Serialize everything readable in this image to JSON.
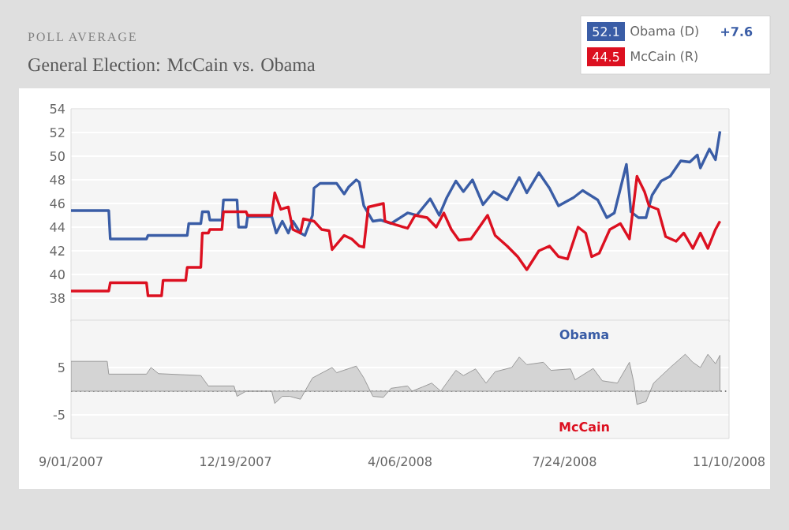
{
  "chart_data": [
    {
      "type": "line",
      "subtitle": "POLL AVERAGE",
      "title": "General Election: McCain vs. Obama",
      "legend": "top right",
      "grid": "y",
      "tick_labels": "y",
      "xlim": [
        "2007-09-01",
        "2008-11-10"
      ],
      "ylim": [
        36,
        54
      ],
      "yticks": [
        38,
        40,
        42,
        44,
        46,
        48,
        50,
        52,
        54
      ],
      "annotations": [
        "52.1",
        "+7.6",
        "44.5"
      ],
      "series": [
        {
          "name": "Obama (D)",
          "color": "#3a5da6",
          "x": [
            "2007-09-01",
            "2007-09-26",
            "2007-09-27",
            "2007-10-21",
            "2007-10-22",
            "2007-11-17",
            "2007-11-18",
            "2007-11-26",
            "2007-11-27",
            "2007-12-01",
            "2007-12-02",
            "2007-12-10",
            "2007-12-11",
            "2007-12-20",
            "2007-12-21",
            "2007-12-26",
            "2007-12-27",
            "2008-01-12",
            "2008-01-15",
            "2008-01-19",
            "2008-01-23",
            "2008-01-26",
            "2008-01-31",
            "2008-02-03",
            "2008-02-08",
            "2008-02-09",
            "2008-02-13",
            "2008-02-24",
            "2008-02-29",
            "2008-03-03",
            "2008-03-08",
            "2008-03-10",
            "2008-03-13",
            "2008-03-19",
            "2008-03-24",
            "2008-03-31",
            "2008-04-11",
            "2008-04-17",
            "2008-04-26",
            "2008-05-02",
            "2008-05-07",
            "2008-05-13",
            "2008-05-18",
            "2008-05-24",
            "2008-05-31",
            "2008-06-07",
            "2008-06-16",
            "2008-06-24",
            "2008-06-29",
            "2008-07-07",
            "2008-07-14",
            "2008-07-20",
            "2008-07-30",
            "2008-08-05",
            "2008-08-15",
            "2008-08-21",
            "2008-08-26",
            "2008-09-03",
            "2008-09-06",
            "2008-09-11",
            "2008-09-16",
            "2008-09-20",
            "2008-09-26",
            "2008-10-02",
            "2008-10-09",
            "2008-10-15",
            "2008-10-20",
            "2008-10-22",
            "2008-10-28",
            "2008-11-01",
            "2008-11-04"
          ],
          "values": [
            45.4,
            45.4,
            43.0,
            43.0,
            43.3,
            43.3,
            44.3,
            44.3,
            45.3,
            45.3,
            44.6,
            44.6,
            46.3,
            46.3,
            44.0,
            44.0,
            44.9,
            44.9,
            43.5,
            44.5,
            43.5,
            44.5,
            43.5,
            43.3,
            45.0,
            47.3,
            47.7,
            47.7,
            46.8,
            47.4,
            48.0,
            47.8,
            45.8,
            44.5,
            44.6,
            44.3,
            45.2,
            45.0,
            46.4,
            45.0,
            46.5,
            47.9,
            47.0,
            48.0,
            45.9,
            47.0,
            46.3,
            48.2,
            46.9,
            48.6,
            47.3,
            45.8,
            46.5,
            47.1,
            46.3,
            44.8,
            45.2,
            49.3,
            45.3,
            44.8,
            44.8,
            46.7,
            47.9,
            48.3,
            49.6,
            49.5,
            50.1,
            49.0,
            50.6,
            49.7,
            52.1
          ]
        },
        {
          "name": "McCain (R)",
          "color": "#dc1020",
          "x": [
            "2007-09-01",
            "2007-09-26",
            "2007-09-27",
            "2007-10-21",
            "2007-10-22",
            "2007-10-31",
            "2007-11-01",
            "2007-11-16",
            "2007-11-17",
            "2007-11-26",
            "2007-11-27",
            "2007-12-01",
            "2007-12-02",
            "2007-12-10",
            "2007-12-11",
            "2007-12-26",
            "2007-12-27",
            "2008-01-12",
            "2008-01-14",
            "2008-01-18",
            "2008-01-23",
            "2008-01-26",
            "2008-01-31",
            "2008-02-02",
            "2008-02-09",
            "2008-02-14",
            "2008-02-19",
            "2008-02-21",
            "2008-02-29",
            "2008-03-05",
            "2008-03-10",
            "2008-03-13",
            "2008-03-16",
            "2008-03-26",
            "2008-03-27",
            "2008-04-03",
            "2008-04-11",
            "2008-04-16",
            "2008-04-24",
            "2008-04-30",
            "2008-05-05",
            "2008-05-10",
            "2008-05-15",
            "2008-05-23",
            "2008-05-28",
            "2008-06-03",
            "2008-06-08",
            "2008-06-16",
            "2008-06-23",
            "2008-06-29",
            "2008-07-07",
            "2008-07-14",
            "2008-07-20",
            "2008-07-26",
            "2008-08-02",
            "2008-08-07",
            "2008-08-11",
            "2008-08-16",
            "2008-08-23",
            "2008-08-30",
            "2008-09-05",
            "2008-09-10",
            "2008-09-15",
            "2008-09-18",
            "2008-09-24",
            "2008-09-29",
            "2008-10-06",
            "2008-10-11",
            "2008-10-17",
            "2008-10-22",
            "2008-10-27",
            "2008-11-01",
            "2008-11-04"
          ],
          "values": [
            38.6,
            38.6,
            39.3,
            39.3,
            38.2,
            38.2,
            39.5,
            39.5,
            40.6,
            40.6,
            43.5,
            43.5,
            43.8,
            43.8,
            45.3,
            45.3,
            45.0,
            45.0,
            46.9,
            45.5,
            45.7,
            43.8,
            43.5,
            44.7,
            44.5,
            43.8,
            43.7,
            42.1,
            43.3,
            43.0,
            42.4,
            42.3,
            45.7,
            46.0,
            44.5,
            44.2,
            43.9,
            45.0,
            44.8,
            44.0,
            45.2,
            43.8,
            42.9,
            43.0,
            43.9,
            45.0,
            43.3,
            42.4,
            41.5,
            40.4,
            42.0,
            42.4,
            41.5,
            41.3,
            44.0,
            43.5,
            41.5,
            41.8,
            43.8,
            44.3,
            43.0,
            48.3,
            47.0,
            45.8,
            45.5,
            43.2,
            42.8,
            43.5,
            42.2,
            43.5,
            42.2,
            43.8,
            44.5
          ]
        }
      ]
    },
    {
      "type": "area",
      "color": "#d4d4d4",
      "grid": "y",
      "xlim": [
        "2007-09-01",
        "2008-11-10"
      ],
      "ylim": [
        -10,
        15
      ],
      "yticks": [
        5,
        -5
      ],
      "xticks": [
        {
          "value": "2007-09-01",
          "label": "9/01/2007"
        },
        {
          "value": "2007-12-19",
          "label": "12/19/2007"
        },
        {
          "value": "2008-04-06",
          "label": "4/06/2008"
        },
        {
          "value": "2008-07-24",
          "label": "7/24/2008"
        },
        {
          "value": "2008-11-10",
          "label": "11/10/2008"
        }
      ],
      "ref_lines": [
        {
          "axis": "y",
          "value": 0,
          "line_style": "dotted",
          "color": "#555555"
        }
      ],
      "annotations": [
        "Obama",
        "McCain"
      ],
      "x": [
        "2007-09-01",
        "2007-09-25",
        "2007-09-26",
        "2007-10-21",
        "2007-10-24",
        "2007-10-29",
        "2007-11-26",
        "2007-12-01",
        "2007-12-18",
        "2007-12-20",
        "2007-12-26",
        "2008-01-12",
        "2008-01-14",
        "2008-01-19",
        "2008-01-24",
        "2008-01-31",
        "2008-02-08",
        "2008-02-21",
        "2008-02-24",
        "2008-03-08",
        "2008-03-13",
        "2008-03-19",
        "2008-03-26",
        "2008-03-31",
        "2008-04-11",
        "2008-04-14",
        "2008-04-21",
        "2008-04-27",
        "2008-05-03",
        "2008-05-13",
        "2008-05-18",
        "2008-05-26",
        "2008-06-02",
        "2008-06-08",
        "2008-06-19",
        "2008-06-24",
        "2008-06-29",
        "2008-07-10",
        "2008-07-15",
        "2008-07-28",
        "2008-07-31",
        "2008-08-12",
        "2008-08-18",
        "2008-08-28",
        "2008-09-05",
        "2008-09-08",
        "2008-09-10",
        "2008-09-16",
        "2008-09-21",
        "2008-10-02",
        "2008-10-12",
        "2008-10-17",
        "2008-10-22",
        "2008-10-27",
        "2008-11-01",
        "2008-11-04"
      ],
      "values": [
        6.3,
        6.3,
        3.6,
        3.6,
        5.0,
        3.7,
        3.3,
        1.1,
        1.1,
        -1.1,
        0,
        0,
        -2.6,
        -1.1,
        -1.1,
        -1.7,
        2.8,
        5.0,
        3.9,
        5.3,
        2.8,
        -1.1,
        -1.3,
        0.6,
        1.1,
        0,
        0.9,
        1.7,
        0,
        4.4,
        3.3,
        4.7,
        1.7,
        4.1,
        5.0,
        7.2,
        5.6,
        6.1,
        4.4,
        4.7,
        2.4,
        4.8,
        2.2,
        1.7,
        6.1,
        1.7,
        -2.8,
        -2.2,
        1.7,
        5.0,
        7.8,
        6.1,
        5.0,
        7.8,
        5.8,
        7.6
      ]
    }
  ]
}
